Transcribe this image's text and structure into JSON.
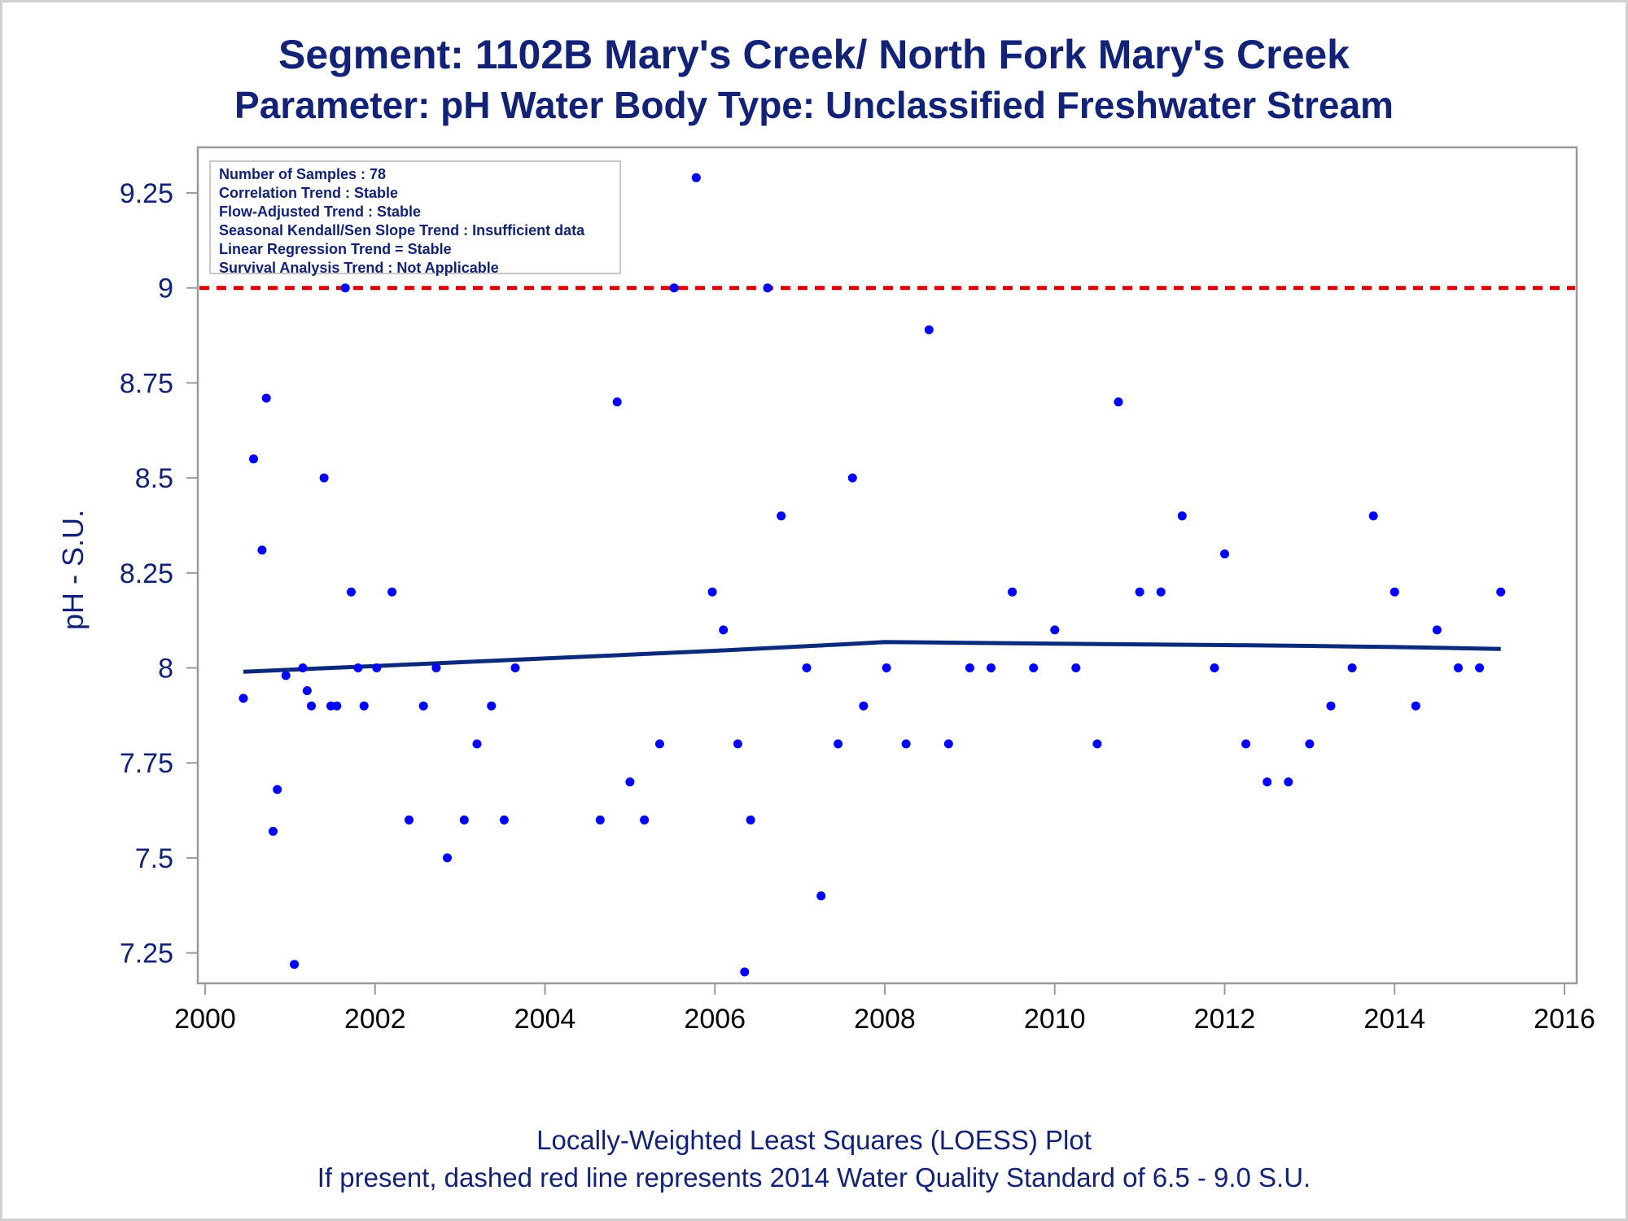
{
  "title": "Segment: 1102B  Mary's Creek/ North Fork Mary's Creek",
  "subtitle": "Parameter: pH   Water Body Type: Unclassified Freshwater Stream",
  "footnote1": "Locally-Weighted Least Squares (LOESS) Plot",
  "footnote2": "If present, dashed red line represents 2014 Water Quality Standard of 6.5 - 9.0 S.U.",
  "stats": [
    "Number of Samples : 78",
    "Correlation Trend : Stable",
    "Flow-Adjusted Trend : Stable",
    "Seasonal Kendall/Sen Slope Trend : Insufficient data",
    "Linear Regression Trend = Stable",
    "Survival Analysis Trend : Not Applicable"
  ],
  "colors": {
    "text": "#112277",
    "points": "#0000ff",
    "loess": "#0b2a7a",
    "standard": "#dd0000",
    "axis": "#9a9a9a"
  },
  "chart_data": {
    "type": "scatter",
    "xlabel": "",
    "ylabel": "pH - S.U.",
    "xlim": [
      2000,
      2016
    ],
    "ylim": [
      7.17,
      9.37
    ],
    "x_ticks": [
      2000,
      2002,
      2004,
      2006,
      2008,
      2010,
      2012,
      2014,
      2016
    ],
    "y_ticks": [
      7.25,
      7.5,
      7.75,
      8,
      8.25,
      8.5,
      8.75,
      9,
      9.25
    ],
    "y_tick_labels": [
      "7.25",
      "7.5",
      "7.75",
      "8",
      "8.25",
      "8.5",
      "8.75",
      "9",
      "9.25"
    ],
    "reference_line": {
      "y": 9.0,
      "style": "dashed",
      "color": "#dd0000"
    },
    "grid": false,
    "points": [
      [
        2000.45,
        7.92
      ],
      [
        2000.57,
        8.55
      ],
      [
        2000.67,
        8.31
      ],
      [
        2000.72,
        8.71
      ],
      [
        2000.8,
        7.57
      ],
      [
        2000.85,
        7.68
      ],
      [
        2000.95,
        7.98
      ],
      [
        2001.05,
        7.22
      ],
      [
        2001.15,
        8.0
      ],
      [
        2001.2,
        7.94
      ],
      [
        2001.25,
        7.9
      ],
      [
        2001.4,
        8.5
      ],
      [
        2001.48,
        7.9
      ],
      [
        2001.55,
        7.9
      ],
      [
        2001.65,
        9.0
      ],
      [
        2001.72,
        8.2
      ],
      [
        2001.8,
        8.0
      ],
      [
        2001.87,
        7.9
      ],
      [
        2002.02,
        8.0
      ],
      [
        2002.2,
        8.2
      ],
      [
        2002.4,
        7.6
      ],
      [
        2002.57,
        7.9
      ],
      [
        2002.72,
        8.0
      ],
      [
        2002.85,
        7.5
      ],
      [
        2003.05,
        7.6
      ],
      [
        2003.2,
        7.8
      ],
      [
        2003.37,
        7.9
      ],
      [
        2003.52,
        7.6
      ],
      [
        2003.65,
        8.0
      ],
      [
        2004.65,
        7.6
      ],
      [
        2004.85,
        8.7
      ],
      [
        2005.0,
        7.7
      ],
      [
        2005.17,
        7.6
      ],
      [
        2005.35,
        7.8
      ],
      [
        2005.52,
        9.0
      ],
      [
        2005.78,
        9.29
      ],
      [
        2005.97,
        8.2
      ],
      [
        2006.1,
        8.1
      ],
      [
        2006.27,
        7.8
      ],
      [
        2006.35,
        7.2
      ],
      [
        2006.42,
        7.6
      ],
      [
        2006.62,
        9.0
      ],
      [
        2006.78,
        8.4
      ],
      [
        2007.08,
        8.0
      ],
      [
        2007.25,
        7.4
      ],
      [
        2007.45,
        7.8
      ],
      [
        2007.62,
        8.5
      ],
      [
        2007.75,
        7.9
      ],
      [
        2008.02,
        8.0
      ],
      [
        2008.25,
        7.8
      ],
      [
        2008.52,
        8.89
      ],
      [
        2008.75,
        7.8
      ],
      [
        2009.0,
        8.0
      ],
      [
        2009.25,
        8.0
      ],
      [
        2009.5,
        8.2
      ],
      [
        2009.75,
        8.0
      ],
      [
        2010.0,
        8.1
      ],
      [
        2010.25,
        8.0
      ],
      [
        2010.5,
        7.8
      ],
      [
        2010.75,
        8.7
      ],
      [
        2011.0,
        8.2
      ],
      [
        2011.25,
        8.2
      ],
      [
        2011.5,
        8.4
      ],
      [
        2011.88,
        8.0
      ],
      [
        2012.0,
        8.3
      ],
      [
        2012.25,
        7.8
      ],
      [
        2012.5,
        7.7
      ],
      [
        2012.75,
        7.7
      ],
      [
        2013.0,
        7.8
      ],
      [
        2013.25,
        7.9
      ],
      [
        2013.5,
        8.0
      ],
      [
        2013.75,
        8.4
      ],
      [
        2014.0,
        8.2
      ],
      [
        2014.25,
        7.9
      ],
      [
        2014.5,
        8.1
      ],
      [
        2014.75,
        8.0
      ],
      [
        2015.0,
        8.0
      ],
      [
        2015.25,
        8.2
      ]
    ],
    "loess": [
      [
        2000.45,
        7.99
      ],
      [
        2002.0,
        8.005
      ],
      [
        2004.0,
        8.025
      ],
      [
        2006.0,
        8.045
      ],
      [
        2007.5,
        8.062
      ],
      [
        2008.0,
        8.068
      ],
      [
        2009.0,
        8.066
      ],
      [
        2010.0,
        8.064
      ],
      [
        2011.0,
        8.062
      ],
      [
        2012.0,
        8.06
      ],
      [
        2013.0,
        8.058
      ],
      [
        2014.0,
        8.055
      ],
      [
        2015.25,
        8.05
      ]
    ]
  }
}
